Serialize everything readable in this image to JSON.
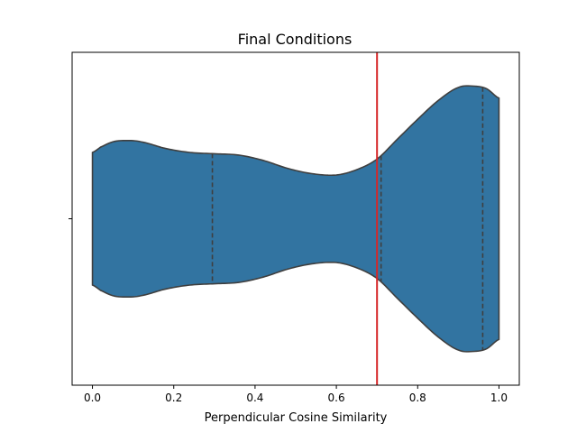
{
  "chart_data": {
    "type": "violin",
    "title": "Final Conditions",
    "xlabel": "Perpendicular Cosine Similarity",
    "ylabel": "",
    "xlim": [
      -0.05,
      1.05
    ],
    "xticks": [
      0.0,
      0.2,
      0.4,
      0.6,
      0.8,
      1.0
    ],
    "xtick_labels": [
      "0.0",
      "0.2",
      "0.4",
      "0.6",
      "0.8",
      "1.0"
    ],
    "grid": false,
    "violin": {
      "color": "#3274a1",
      "edge_color": "#3f3f3f",
      "min": 0.0,
      "max": 1.0,
      "quartiles": [
        0.295,
        0.71,
        0.96
      ],
      "density_profile": [
        [
          0.0,
          0.5
        ],
        [
          0.02,
          0.54
        ],
        [
          0.05,
          0.58
        ],
        [
          0.08,
          0.59
        ],
        [
          0.12,
          0.58
        ],
        [
          0.18,
          0.53
        ],
        [
          0.24,
          0.5
        ],
        [
          0.3,
          0.49
        ],
        [
          0.36,
          0.48
        ],
        [
          0.42,
          0.44
        ],
        [
          0.48,
          0.38
        ],
        [
          0.54,
          0.34
        ],
        [
          0.6,
          0.33
        ],
        [
          0.65,
          0.37
        ],
        [
          0.7,
          0.45
        ],
        [
          0.75,
          0.6
        ],
        [
          0.8,
          0.75
        ],
        [
          0.85,
          0.89
        ],
        [
          0.9,
          0.99
        ],
        [
          0.94,
          1.0
        ],
        [
          0.97,
          0.98
        ],
        [
          1.0,
          0.91
        ]
      ]
    },
    "reference_line": {
      "x": 0.7,
      "color": "#d62728"
    }
  }
}
